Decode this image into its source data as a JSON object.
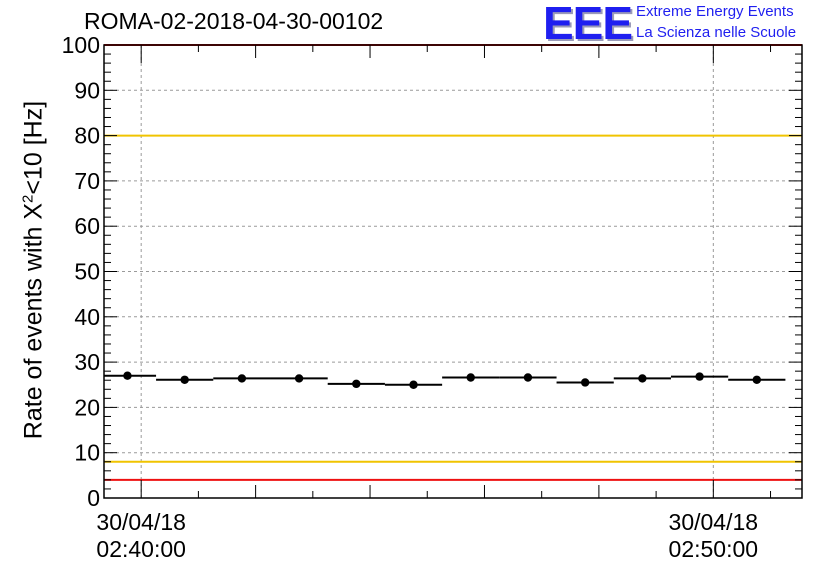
{
  "header": {
    "run_title": "ROMA-02-2018-04-30-00102",
    "logo_letters": "EEE",
    "logo_line1": "Extreme Energy Events",
    "logo_line2": "La Scienza nelle Scuole"
  },
  "colors": {
    "frame": "#000000",
    "grid": "#9a9a9a",
    "limit_red": "#ee1111",
    "limit_yellow": "#f0c400",
    "logo_blue": "#1f1ff0"
  },
  "chart_data": {
    "type": "scatter",
    "title": "ROMA-02-2018-04-30-00102",
    "ylabel_prefix": "Rate of events with X",
    "ylabel_sup": "2",
    "ylabel_suffix": "<10 [Hz]",
    "ylim": [
      0,
      100
    ],
    "yticks": [
      0,
      10,
      20,
      30,
      40,
      50,
      60,
      70,
      80,
      90,
      100
    ],
    "xlim_minutes": [
      -0.65,
      11.55
    ],
    "xtick_labels": [
      {
        "minute": 0,
        "date": "30/04/18",
        "time": "02:40:00"
      },
      {
        "minute": 10,
        "date": "30/04/18",
        "time": "02:50:00"
      }
    ],
    "bin_width_minutes": 1,
    "x_minutes": [
      -0.24,
      0.76,
      1.76,
      2.76,
      3.76,
      4.76,
      5.76,
      6.76,
      7.76,
      8.76,
      9.76,
      10.76
    ],
    "values": [
      27.0,
      26.1,
      26.4,
      26.4,
      25.2,
      25.0,
      26.6,
      26.6,
      25.5,
      26.4,
      26.8,
      26.1
    ],
    "reference_lines": [
      {
        "y": 100,
        "color": "red"
      },
      {
        "y": 80,
        "color": "yellow"
      },
      {
        "y": 8,
        "color": "yellow"
      },
      {
        "y": 4,
        "color": "red"
      }
    ],
    "grid": true
  }
}
